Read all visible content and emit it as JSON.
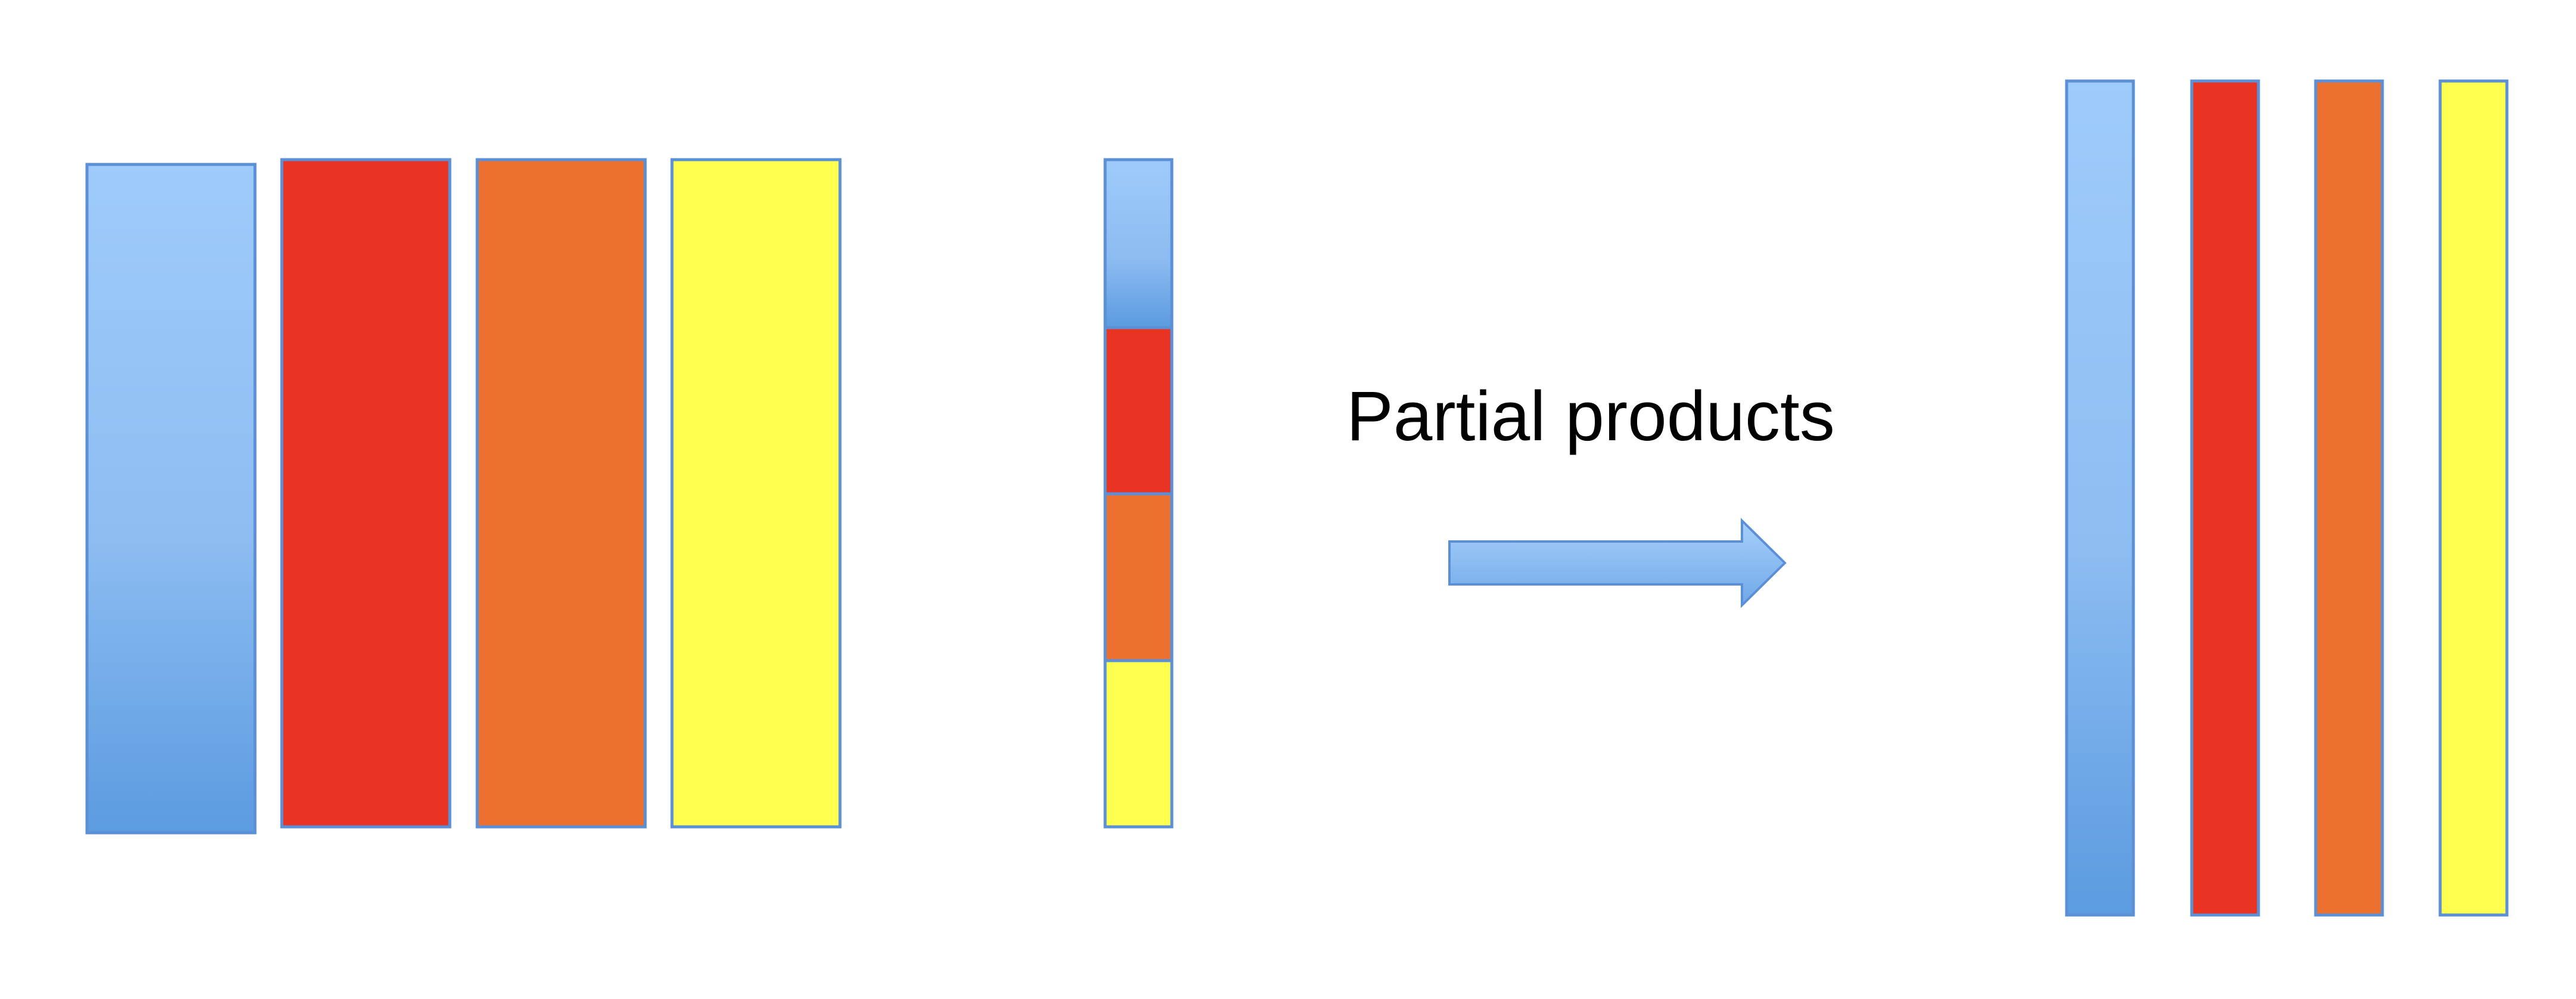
{
  "caption": "Partial products",
  "colors": {
    "blue_top": "#9ECBFB",
    "blue_bottom": "#5B9BE0",
    "red": "#E93424",
    "orange": "#EC7130",
    "yellow": "#FFFF50",
    "outline": "#5B8FD6"
  },
  "matrix_columns": [
    "blue",
    "red",
    "orange",
    "yellow"
  ],
  "vector_segments": [
    "blue",
    "red",
    "orange",
    "yellow"
  ],
  "result_columns": [
    "blue",
    "red",
    "orange",
    "yellow"
  ]
}
